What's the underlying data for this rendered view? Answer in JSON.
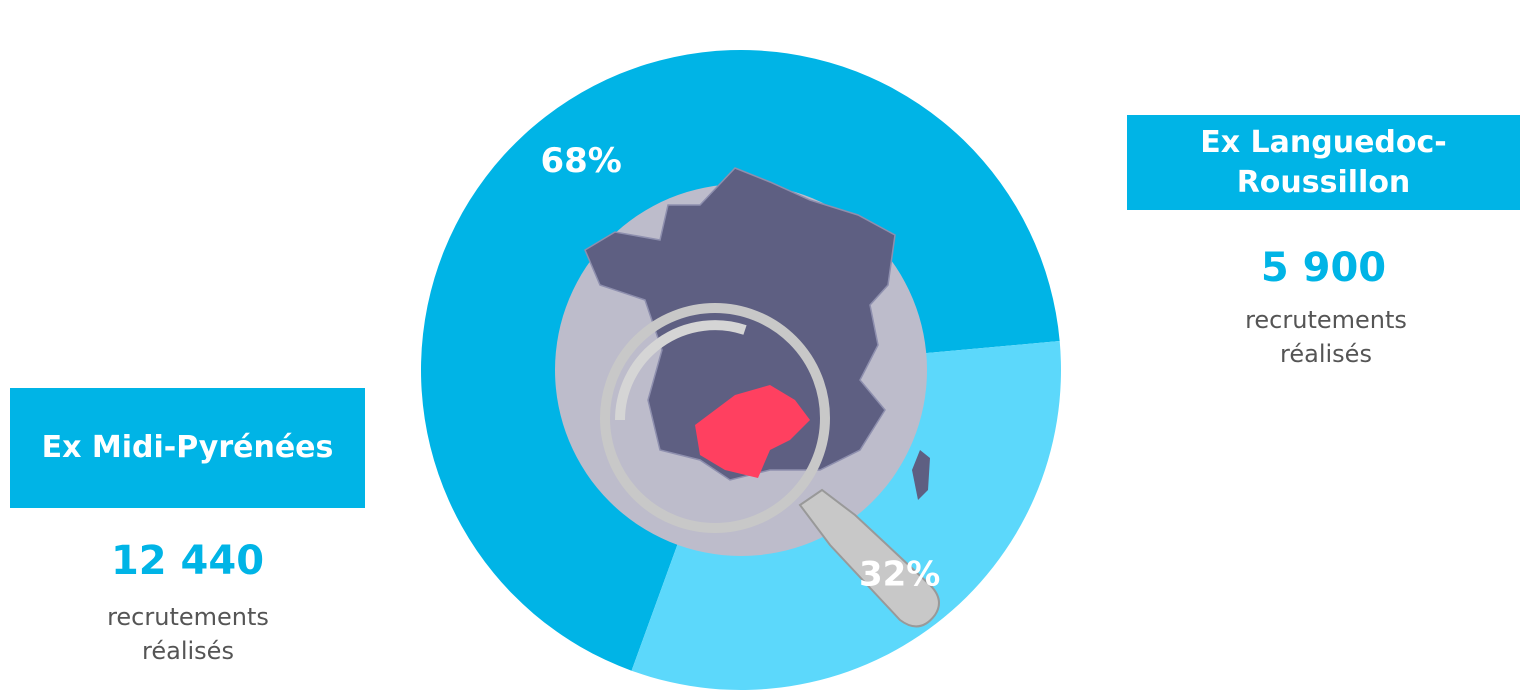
{
  "chart_data": {
    "type": "donut",
    "categories": [
      "Ex Midi-Pyrénées",
      "Ex Languedoc-Roussillon"
    ],
    "values": [
      68,
      32
    ],
    "value_labels": [
      "68%",
      "32%"
    ],
    "colors": [
      "#00b4e6",
      "#5cd8fb"
    ],
    "recruitments": [
      12440,
      5900
    ],
    "recruitment_labels": [
      "12 440",
      "5 900"
    ],
    "caption": "recrutements réalisés"
  }
}
